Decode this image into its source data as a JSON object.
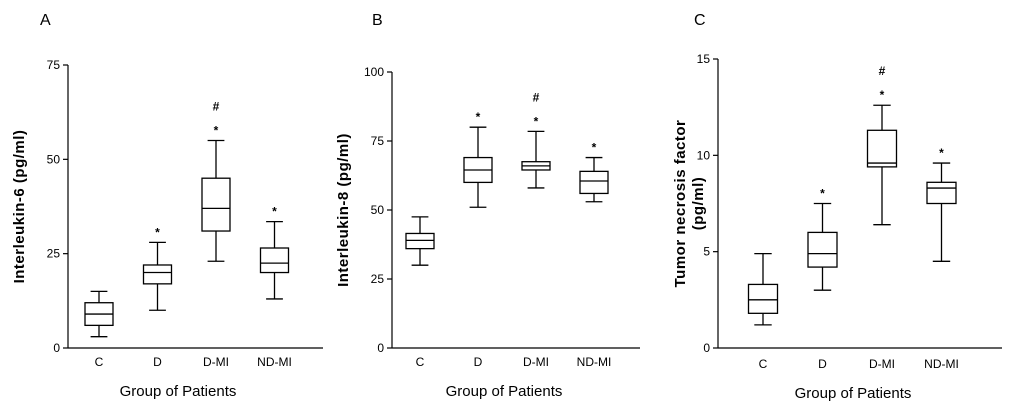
{
  "chart_data": [
    {
      "type": "box",
      "panel_label": "A",
      "ylabel": "Interleukin-6  (pg/ml)",
      "xlabel": "Group of Patients",
      "ylim": [
        0,
        75
      ],
      "yticks": [
        "0",
        "25",
        "50",
        "75"
      ],
      "categories": [
        "C",
        "D",
        "D-MI",
        "ND-MI"
      ],
      "boxes": [
        {
          "min": 3,
          "q1": 6,
          "median": 9,
          "q3": 12,
          "max": 15,
          "markers": []
        },
        {
          "min": 10,
          "q1": 17,
          "median": 20,
          "q3": 22,
          "max": 28,
          "markers": [
            "*"
          ]
        },
        {
          "min": 23,
          "q1": 31,
          "median": 37,
          "q3": 45,
          "max": 55,
          "markers": [
            "*",
            "#"
          ]
        },
        {
          "min": 13,
          "q1": 20,
          "median": 22.5,
          "q3": 26.5,
          "max": 33.5,
          "markers": [
            "*"
          ]
        }
      ]
    },
    {
      "type": "box",
      "panel_label": "B",
      "ylabel": "Interleukin-8  (pg/ml)",
      "xlabel": "Group of Patients",
      "ylim": [
        0,
        100
      ],
      "yticks": [
        "0",
        "25",
        "50",
        "75",
        "100"
      ],
      "categories": [
        "C",
        "D",
        "D-MI",
        "ND-MI"
      ],
      "boxes": [
        {
          "min": 30,
          "q1": 36,
          "median": 39,
          "q3": 41.5,
          "max": 47.5,
          "markers": []
        },
        {
          "min": 51,
          "q1": 60,
          "median": 64.5,
          "q3": 69,
          "max": 80,
          "markers": [
            "*"
          ]
        },
        {
          "min": 58,
          "q1": 64.5,
          "median": 66,
          "q3": 67.5,
          "max": 78.5,
          "markers": [
            "*",
            "#"
          ]
        },
        {
          "min": 53,
          "q1": 56,
          "median": 60.5,
          "q3": 64,
          "max": 69,
          "markers": [
            "*"
          ]
        }
      ]
    },
    {
      "type": "box",
      "panel_label": "C",
      "ylabel_lines": [
        "Tumor necrosis factor",
        "(pg/ml)"
      ],
      "xlabel": "Group of Patients",
      "ylim": [
        0,
        15
      ],
      "yticks": [
        "0",
        "5",
        "10",
        "15"
      ],
      "categories": [
        "C",
        "D",
        "D-MI",
        "ND-MI"
      ],
      "boxes": [
        {
          "min": 1.2,
          "q1": 1.8,
          "median": 2.5,
          "q3": 3.3,
          "max": 4.9,
          "markers": []
        },
        {
          "min": 3.0,
          "q1": 4.2,
          "median": 4.9,
          "q3": 6.0,
          "max": 7.5,
          "markers": [
            "*"
          ]
        },
        {
          "min": 6.4,
          "q1": 9.4,
          "median": 9.6,
          "q3": 11.3,
          "max": 12.6,
          "markers": [
            "*",
            "#"
          ]
        },
        {
          "min": 4.5,
          "q1": 7.5,
          "median": 8.3,
          "q3": 8.6,
          "max": 9.6,
          "markers": [
            "*"
          ]
        }
      ]
    }
  ]
}
